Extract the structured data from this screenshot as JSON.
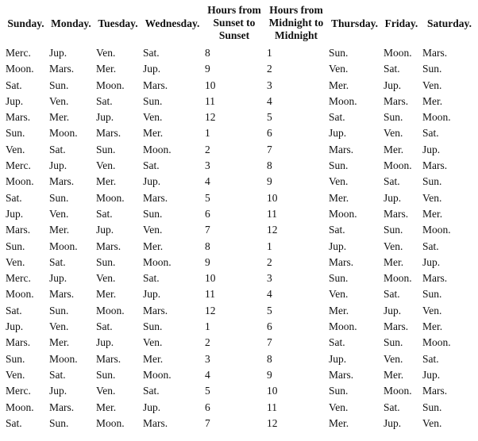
{
  "headers": [
    "Sunday.",
    "Monday.",
    "Tuesday.",
    "Wednesday.",
    "Hours from Sunset to Sunset",
    "Hours from Midnight to Midnight",
    "Thursday.",
    "Friday.",
    "Saturday."
  ],
  "rows": [
    [
      "Merc.",
      "Jup.",
      "Ven.",
      "Sat.",
      "8",
      "1",
      "Sun.",
      "Moon.",
      "Mars."
    ],
    [
      "Moon.",
      "Mars.",
      "Mer.",
      "Jup.",
      "9",
      "2",
      "Ven.",
      "Sat.",
      "Sun."
    ],
    [
      "Sat.",
      "Sun.",
      "Moon.",
      "Mars.",
      "10",
      "3",
      "Mer.",
      "Jup.",
      "Ven."
    ],
    [
      "Jup.",
      "Ven.",
      "Sat.",
      "Sun.",
      "11",
      "4",
      "Moon.",
      "Mars.",
      "Mer."
    ],
    [
      "Mars.",
      "Mer.",
      "Jup.",
      "Ven.",
      "12",
      "5",
      "Sat.",
      "Sun.",
      "Moon."
    ],
    [
      "Sun.",
      "Moon.",
      "Mars.",
      "Mer.",
      "1",
      "6",
      "Jup.",
      "Ven.",
      "Sat."
    ],
    [
      "Ven.",
      "Sat.",
      "Sun.",
      "Moon.",
      "2",
      "7",
      "Mars.",
      "Mer.",
      "Jup."
    ],
    [
      "Merc.",
      "Jup.",
      "Ven.",
      "Sat.",
      "3",
      "8",
      "Sun.",
      "Moon.",
      "Mars."
    ],
    [
      "Moon.",
      "Mars.",
      "Mer.",
      "Jup.",
      "4",
      "9",
      "Ven.",
      "Sat.",
      "Sun."
    ],
    [
      "Sat.",
      "Sun.",
      "Moon.",
      "Mars.",
      "5",
      "10",
      "Mer.",
      "Jup.",
      "Ven."
    ],
    [
      "Jup.",
      "Ven.",
      "Sat.",
      "Sun.",
      "6",
      "11",
      "Moon.",
      "Mars.",
      "Mer."
    ],
    [
      "Mars.",
      "Mer.",
      "Jup.",
      "Ven.",
      "7",
      "12",
      "Sat.",
      "Sun.",
      "Moon."
    ],
    [
      "Sun.",
      "Moon.",
      "Mars.",
      "Mer.",
      "8",
      "1",
      "Jup.",
      "Ven.",
      "Sat."
    ],
    [
      "Ven.",
      "Sat.",
      "Sun.",
      "Moon.",
      "9",
      "2",
      "Mars.",
      "Mer.",
      "Jup."
    ],
    [
      "Merc.",
      "Jup.",
      "Ven.",
      "Sat.",
      "10",
      "3",
      "Sun.",
      "Moon.",
      "Mars."
    ],
    [
      "Moon.",
      "Mars.",
      "Mer.",
      "Jup.",
      "11",
      "4",
      "Ven.",
      "Sat.",
      "Sun."
    ],
    [
      "Sat.",
      "Sun.",
      "Moon.",
      "Mars.",
      "12",
      "5",
      "Mer.",
      "Jup.",
      "Ven."
    ],
    [
      "Jup.",
      "Ven.",
      "Sat.",
      "Sun.",
      "1",
      "6",
      "Moon.",
      "Mars.",
      "Mer."
    ],
    [
      "Mars.",
      "Mer.",
      "Jup.",
      "Ven.",
      "2",
      "7",
      "Sat.",
      "Sun.",
      "Moon."
    ],
    [
      "Sun.",
      "Moon.",
      "Mars.",
      "Mer.",
      "3",
      "8",
      "Jup.",
      "Ven.",
      "Sat."
    ],
    [
      "Ven.",
      "Sat.",
      "Sun.",
      "Moon.",
      "4",
      "9",
      "Mars.",
      "Mer.",
      "Jup."
    ],
    [
      "Merc.",
      "Jup.",
      "Ven.",
      "Sat.",
      "5",
      "10",
      "Sun.",
      "Moon.",
      "Mars."
    ],
    [
      "Moon.",
      "Mars.",
      "Mer.",
      "Jup.",
      "6",
      "11",
      "Ven.",
      "Sat.",
      "Sun."
    ],
    [
      "Sat.",
      "Sun.",
      "Moon.",
      "Mars.",
      "7",
      "12",
      "Mer.",
      "Jup.",
      "Ven."
    ]
  ]
}
